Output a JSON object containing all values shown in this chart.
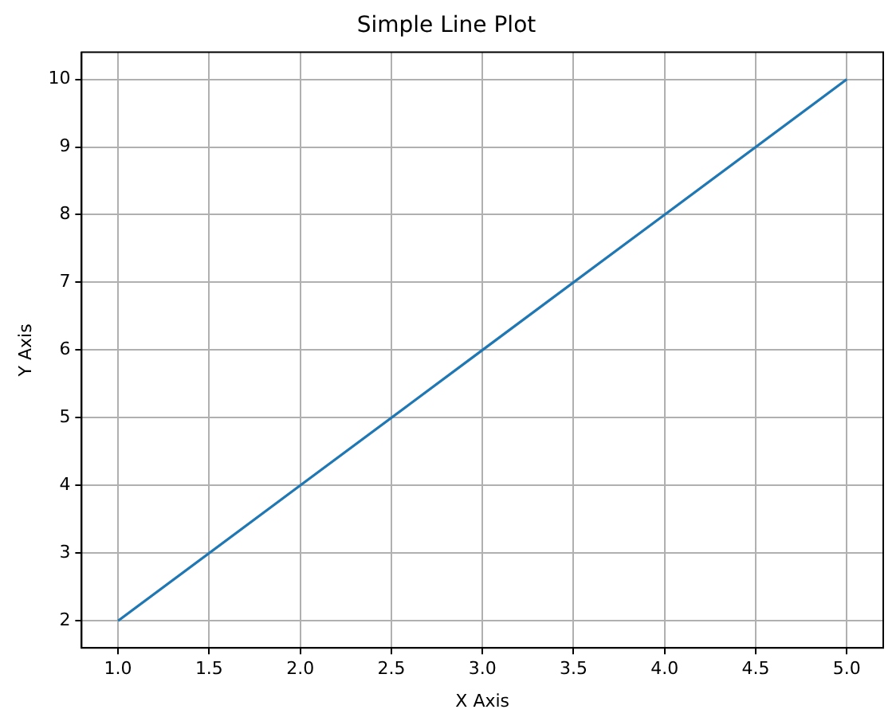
{
  "chart_data": {
    "type": "line",
    "title": "Simple Line Plot",
    "xlabel": "X Axis",
    "ylabel": "Y Axis",
    "x": [
      1,
      2,
      3,
      4,
      5
    ],
    "series": [
      {
        "color": "#1f77b4",
        "values": [
          2,
          4,
          6,
          8,
          10
        ]
      }
    ],
    "xlim": [
      0.8,
      5.2
    ],
    "ylim": [
      1.6,
      10.4
    ],
    "xticks": [
      {
        "value": 1,
        "label": "1.0"
      },
      {
        "value": 1.5,
        "label": "1.5"
      },
      {
        "value": 2,
        "label": "2.0"
      },
      {
        "value": 2.5,
        "label": "2.5"
      },
      {
        "value": 3,
        "label": "3.0"
      },
      {
        "value": 3.5,
        "label": "3.5"
      },
      {
        "value": 4,
        "label": "4.0"
      },
      {
        "value": 4.5,
        "label": "4.5"
      },
      {
        "value": 5,
        "label": "5.0"
      }
    ],
    "yticks": [
      2,
      3,
      4,
      5,
      6,
      7,
      8,
      9,
      10
    ],
    "grid": true,
    "legend": false,
    "marker": "none",
    "line_style": "solid"
  }
}
